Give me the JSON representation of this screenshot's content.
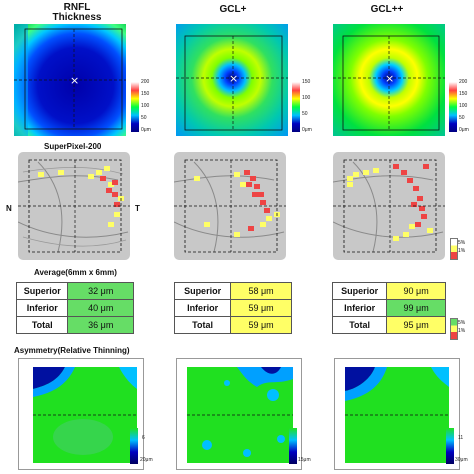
{
  "columns": [
    {
      "title_line1": "RNFL",
      "title_line2": "Thickness",
      "scale": {
        "max": "200",
        "mid1": "150",
        "mid2": "100",
        "mid3": "50",
        "min": "0μm"
      },
      "averages": [
        {
          "label": "Superior",
          "value": "32 μm",
          "color": "#66dd66"
        },
        {
          "label": "Inferior",
          "value": "40 μm",
          "color": "#66dd66"
        },
        {
          "label": "Total",
          "value": "36 μm",
          "color": "#66dd66"
        }
      ],
      "asym_scale": {
        "top": "6",
        "bottom": "20μm"
      }
    },
    {
      "title_line1": "GCL+",
      "title_line2": "",
      "scale": {
        "max": "150",
        "mid1": "100",
        "mid2": "50",
        "mid3": "",
        "min": "0μm"
      },
      "averages": [
        {
          "label": "Superior",
          "value": "58 μm",
          "color": "#ffff66"
        },
        {
          "label": "Inferior",
          "value": "59 μm",
          "color": "#ffff66"
        },
        {
          "label": "Total",
          "value": "59 μm",
          "color": "#ffff66"
        }
      ],
      "asym_scale": {
        "top": "",
        "bottom": "15μm"
      }
    },
    {
      "title_line1": "GCL++",
      "title_line2": "",
      "scale": {
        "max": "200",
        "mid1": "150",
        "mid2": "100",
        "mid3": "50",
        "min": "0μm"
      },
      "averages": [
        {
          "label": "Superior",
          "value": "90 μm",
          "color": "#ffff66"
        },
        {
          "label": "Inferior",
          "value": "99 μm",
          "color": "#66dd66"
        },
        {
          "label": "Total",
          "value": "95 μm",
          "color": "#ffff66"
        }
      ],
      "asym_scale": {
        "top": "11",
        "bottom": "30μm"
      }
    }
  ],
  "superpixel_label": "SuperPixel-200",
  "nasal_label": "N",
  "temporal_label": "T",
  "average_label": "Average(6mm x 6mm)",
  "asymmetry_label": "Asymmetry(Relative Thinning)",
  "superpixel_legend": {
    "a": "5%",
    "b": "1%"
  },
  "avg_legend": {
    "a": "5%",
    "b": "1%"
  },
  "colors": {
    "green": "#66dd66",
    "yellow": "#ffff66",
    "red": "#ee4444"
  }
}
